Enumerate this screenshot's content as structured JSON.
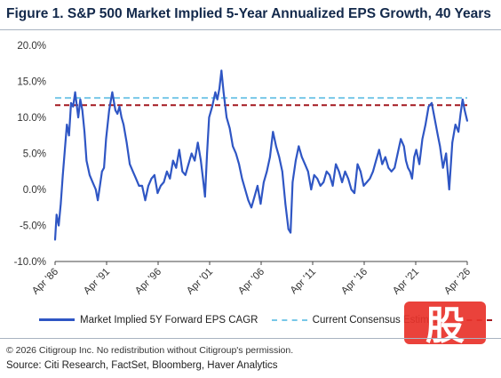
{
  "title": "Figure 1. S&P 500 Market Implied 5-Year Annualized EPS Growth, 40 Years",
  "footer": {
    "copyright": "© 2026 Citigroup Inc. No redistribution without Citigroup's permission.",
    "source": "Source: Citi Research, FactSet, Bloomberg, Haver Analytics"
  },
  "watermark": {
    "glyph": "股"
  },
  "colors": {
    "series": "#2f56c4",
    "consensus": "#78c8e8",
    "long_run": "#a31920",
    "title": "#13294b"
  },
  "chart_data": {
    "type": "line",
    "title": "Figure 1. S&P 500 Market Implied 5-Year Annualized EPS Growth, 40 Years",
    "xlim": [
      1986.25,
      2026.25
    ],
    "ylim": [
      -10,
      20
    ],
    "yticks": [
      "20.0%",
      "15.0%",
      "10.0%",
      "5.0%",
      "0.0%",
      "-5.0%",
      "-10.0%"
    ],
    "xticks": [
      "Apr '86",
      "Apr '91",
      "Apr '96",
      "Apr '01",
      "Apr '06",
      "Apr '11",
      "Apr '16",
      "Apr '21",
      "Apr '26"
    ],
    "grid": false,
    "legend_position": "bottom",
    "reference_lines": [
      {
        "name": "Current Consensus Estimate",
        "value": 12.7,
        "style": "dashed"
      },
      {
        "name": "",
        "value": 11.7,
        "style": "dashed"
      }
    ],
    "series": [
      {
        "name": "Market Implied 5Y Forward EPS CAGR",
        "x": [
          1986.25,
          1986.4,
          1986.6,
          1986.8,
          1987.0,
          1987.2,
          1987.4,
          1987.6,
          1987.8,
          1988.0,
          1988.2,
          1988.5,
          1988.7,
          1988.9,
          1989.1,
          1989.3,
          1989.6,
          1989.9,
          1990.2,
          1990.4,
          1990.6,
          1990.8,
          1991.0,
          1991.2,
          1991.5,
          1991.8,
          1992.1,
          1992.3,
          1992.5,
          1992.7,
          1992.9,
          1993.2,
          1993.5,
          1993.8,
          1994.1,
          1994.4,
          1994.7,
          1995.0,
          1995.3,
          1995.6,
          1995.9,
          1996.2,
          1996.5,
          1996.8,
          1997.1,
          1997.4,
          1997.7,
          1998.0,
          1998.3,
          1998.6,
          1998.9,
          1999.2,
          1999.5,
          1999.8,
          2000.1,
          2000.4,
          2000.6,
          2000.8,
          2001.0,
          2001.2,
          2001.5,
          2001.8,
          2002.0,
          2002.2,
          2002.4,
          2002.6,
          2002.9,
          2003.2,
          2003.5,
          2003.8,
          2004.1,
          2004.4,
          2004.7,
          2005.0,
          2005.3,
          2005.6,
          2005.9,
          2006.2,
          2006.5,
          2006.8,
          2007.1,
          2007.4,
          2007.7,
          2008.0,
          2008.3,
          2008.6,
          2008.9,
          2009.1,
          2009.3,
          2009.6,
          2009.9,
          2010.2,
          2010.5,
          2010.8,
          2011.1,
          2011.4,
          2011.7,
          2012.0,
          2012.3,
          2012.6,
          2012.9,
          2013.2,
          2013.5,
          2013.8,
          2014.1,
          2014.4,
          2014.7,
          2015.0,
          2015.3,
          2015.6,
          2015.9,
          2016.2,
          2016.5,
          2016.8,
          2017.1,
          2017.4,
          2017.7,
          2018.0,
          2018.3,
          2018.6,
          2018.9,
          2019.2,
          2019.5,
          2019.8,
          2020.1,
          2020.3,
          2020.5,
          2020.7,
          2020.9,
          2021.1,
          2021.3,
          2021.6,
          2021.9,
          2022.2,
          2022.5,
          2022.8,
          2023.0,
          2023.2,
          2023.4,
          2023.6,
          2023.9,
          2024.2,
          2024.5,
          2024.8,
          2025.1,
          2025.4,
          2025.6,
          2025.8,
          2026.0,
          2026.25
        ],
        "y": [
          -7.0,
          -3.5,
          -5.0,
          -2.0,
          2.0,
          5.5,
          9.0,
          7.5,
          12.0,
          11.5,
          13.5,
          10.0,
          12.5,
          11.0,
          8.0,
          4.0,
          2.0,
          1.0,
          0.0,
          -1.5,
          0.5,
          2.5,
          3.0,
          7.0,
          11.0,
          13.5,
          11.0,
          10.5,
          11.5,
          10.0,
          9.0,
          6.5,
          3.5,
          2.5,
          1.5,
          0.5,
          0.5,
          -1.5,
          0.5,
          1.5,
          2.0,
          -0.5,
          0.5,
          1.0,
          2.5,
          1.5,
          4.0,
          3.0,
          5.5,
          2.5,
          2.0,
          3.5,
          5.0,
          4.0,
          6.5,
          4.0,
          1.5,
          -1.0,
          5.0,
          10.0,
          11.5,
          13.5,
          12.5,
          14.0,
          16.5,
          13.5,
          10.0,
          8.5,
          6.0,
          5.0,
          3.5,
          1.5,
          0.0,
          -1.5,
          -2.5,
          -1.0,
          0.5,
          -2.0,
          1.0,
          2.5,
          4.5,
          8.0,
          6.0,
          4.5,
          2.5,
          -2.0,
          -5.5,
          -6.0,
          1.0,
          4.0,
          6.0,
          4.5,
          3.5,
          2.5,
          0.0,
          2.0,
          1.5,
          0.5,
          1.0,
          2.5,
          2.0,
          0.5,
          3.5,
          2.5,
          1.0,
          2.5,
          1.5,
          0.0,
          -0.5,
          3.5,
          2.5,
          0.5,
          1.0,
          1.5,
          2.5,
          4.0,
          5.5,
          3.5,
          4.5,
          3.0,
          2.5,
          3.0,
          5.0,
          7.0,
          6.0,
          4.0,
          3.0,
          2.5,
          1.5,
          4.5,
          5.5,
          3.5,
          7.0,
          9.0,
          11.5,
          12.0,
          10.5,
          9.0,
          7.5,
          6.0,
          3.0,
          5.0,
          0.0,
          6.5,
          9.0,
          8.0,
          10.5,
          12.5,
          11.0,
          9.5
        ]
      }
    ]
  }
}
